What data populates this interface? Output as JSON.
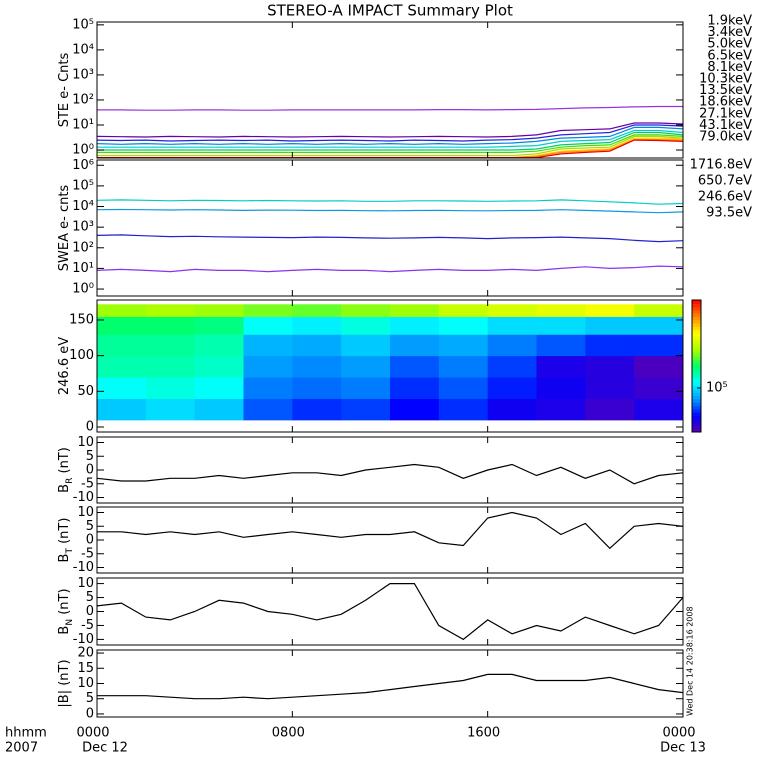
{
  "title": "STEREO-A IMPACT Summary Plot",
  "x_axis": {
    "xlim": [
      0,
      24
    ],
    "xticks": [
      {
        "value": 0,
        "label": "0000"
      },
      {
        "value": 8,
        "label": "0800"
      },
      {
        "value": 16,
        "label": "1600"
      },
      {
        "value": 24,
        "label": "0000"
      }
    ],
    "dates": [
      "Dec 12",
      "Dec 13"
    ],
    "labels": [
      "hhmm",
      "2007"
    ]
  },
  "timestamp": "Wed Dec 14 20:38:16 2008",
  "chart_data": [
    {
      "type": "line",
      "log": true,
      "ylabel": {
        "text": "STE e- Cnts"
      },
      "ylim": [
        0.48,
        130000
      ],
      "yticks": [
        {
          "value": 1,
          "label": "10⁰"
        },
        {
          "value": 10,
          "label": "10¹"
        },
        {
          "value": 100,
          "label": "10²"
        },
        {
          "value": 1000,
          "label": "10³"
        },
        {
          "value": 10000,
          "label": "10⁴"
        },
        {
          "value": 100000,
          "label": "10⁵"
        }
      ],
      "x": [
        0,
        1,
        2,
        3,
        4,
        5,
        6,
        7,
        8,
        9,
        10,
        11,
        12,
        13,
        14,
        15,
        16,
        17,
        18,
        19,
        20,
        21,
        22,
        23,
        24
      ],
      "series": [
        {
          "name": "1.9keV",
          "color": "#9933dd",
          "values": [
            40,
            40,
            39,
            39,
            40,
            40,
            39,
            39,
            40,
            40,
            40,
            40,
            40,
            40,
            41,
            41,
            40,
            41,
            42,
            45,
            48,
            50,
            53,
            55,
            55
          ]
        },
        {
          "name": "3.4keV",
          "color": "#6600aa",
          "values": [
            3.5,
            3.4,
            3.3,
            3.5,
            3.4,
            3.3,
            3.5,
            3.4,
            3.3,
            3.4,
            3.5,
            3.4,
            3.3,
            3.4,
            3.5,
            3.4,
            3.3,
            3.5,
            4,
            6,
            6.5,
            7,
            12,
            12,
            11
          ]
        },
        {
          "name": "5.0keV",
          "color": "#2222dd",
          "values": [
            2.5,
            2.4,
            2.5,
            2.3,
            2.4,
            2.5,
            2.4,
            2.5,
            2.3,
            2.4,
            2.5,
            2.4,
            2.3,
            2.5,
            2.4,
            2.3,
            2.5,
            2.6,
            3,
            4,
            4.5,
            5,
            10,
            10,
            9
          ]
        },
        {
          "name": "6.5keV",
          "color": "#0088dd",
          "values": [
            1.8,
            1.7,
            1.8,
            1.7,
            1.8,
            1.7,
            1.8,
            1.7,
            1.8,
            1.7,
            1.8,
            1.7,
            1.8,
            1.7,
            1.8,
            1.7,
            1.8,
            1.9,
            2.2,
            3,
            3.2,
            3.5,
            8,
            8,
            7
          ]
        },
        {
          "name": "8.1keV",
          "color": "#00cccc",
          "values": [
            1.3,
            1.3,
            1.3,
            1.3,
            1.3,
            1.3,
            1.3,
            1.3,
            1.3,
            1.3,
            1.3,
            1.3,
            1.3,
            1.3,
            1.3,
            1.3,
            1.3,
            1.4,
            1.5,
            2.2,
            2.4,
            2.6,
            6,
            6,
            5
          ]
        },
        {
          "name": "10.3keV",
          "color": "#00cc66",
          "values": [
            1,
            1,
            1,
            1,
            1,
            1,
            1,
            1,
            1,
            1,
            1,
            1,
            1,
            1,
            1,
            1,
            1,
            1,
            1.1,
            1.6,
            1.8,
            2,
            5,
            5,
            4
          ]
        },
        {
          "name": "13.5keV",
          "color": "#44dd00",
          "values": [
            0.8,
            0.8,
            0.8,
            0.8,
            0.8,
            0.8,
            0.8,
            0.8,
            0.8,
            0.8,
            0.8,
            0.8,
            0.8,
            0.8,
            0.8,
            0.8,
            0.8,
            0.8,
            0.9,
            1.3,
            1.5,
            1.6,
            4,
            4,
            3.5
          ]
        },
        {
          "name": "18.6keV",
          "color": "#aadd00",
          "values": [
            0.6,
            0.6,
            0.6,
            0.6,
            0.6,
            0.6,
            0.6,
            0.6,
            0.6,
            0.6,
            0.6,
            0.6,
            0.6,
            0.6,
            0.6,
            0.6,
            0.6,
            0.6,
            0.7,
            1.1,
            1.2,
            1.3,
            3.5,
            3.5,
            3
          ]
        },
        {
          "name": "27.1keV",
          "color": "#ffcc00",
          "values": [
            0.5,
            0.5,
            0.5,
            0.5,
            0.5,
            0.5,
            0.5,
            0.5,
            0.5,
            0.5,
            0.5,
            0.5,
            0.5,
            0.5,
            0.5,
            0.5,
            0.5,
            0.5,
            0.6,
            0.9,
            1,
            1.1,
            3,
            3,
            2.8
          ]
        },
        {
          "name": "43.1keV",
          "color": "#ff8800",
          "values": [
            0.5,
            0.5,
            0.5,
            0.5,
            0.5,
            0.5,
            0.5,
            0.5,
            0.5,
            0.5,
            0.5,
            0.5,
            0.5,
            0.5,
            0.5,
            0.5,
            0.5,
            0.5,
            0.55,
            0.8,
            0.9,
            1,
            2.6,
            2.6,
            2.5
          ]
        },
        {
          "name": "79.0keV",
          "color": "#ee0000",
          "values": [
            0.5,
            0.5,
            0.5,
            0.5,
            0.5,
            0.5,
            0.5,
            0.5,
            0.5,
            0.5,
            0.5,
            0.5,
            0.5,
            0.5,
            0.5,
            0.5,
            0.5,
            0.5,
            0.5,
            0.7,
            0.8,
            0.9,
            2.5,
            2.4,
            2.2
          ]
        }
      ]
    },
    {
      "type": "line",
      "log": true,
      "ylabel": {
        "text": "SWEA e- cnts"
      },
      "ylim": [
        0.46,
        1800000
      ],
      "yticks": [
        {
          "value": 1,
          "label": "10⁰"
        },
        {
          "value": 10,
          "label": "10¹"
        },
        {
          "value": 100,
          "label": "10²"
        },
        {
          "value": 1000,
          "label": "10³"
        },
        {
          "value": 10000,
          "label": "10⁴"
        },
        {
          "value": 100000,
          "label": "10⁵"
        },
        {
          "value": 1000000,
          "label": "10⁶"
        }
      ],
      "x": [
        0,
        1,
        2,
        3,
        4,
        5,
        6,
        7,
        8,
        9,
        10,
        11,
        12,
        13,
        14,
        15,
        16,
        17,
        18,
        19,
        20,
        21,
        22,
        23,
        24
      ],
      "series": [
        {
          "name": "1716.8eV",
          "color": "#8833ee",
          "values": [
            8,
            9,
            8,
            7,
            9,
            8,
            8,
            7,
            8,
            9,
            8,
            8,
            7,
            8,
            9,
            8,
            8,
            9,
            8,
            10,
            12,
            10,
            11,
            13,
            12
          ]
        },
        {
          "name": "650.7eV",
          "color": "#2222cc",
          "values": [
            400,
            420,
            380,
            350,
            360,
            340,
            330,
            320,
            310,
            330,
            320,
            300,
            290,
            300,
            320,
            300,
            280,
            300,
            310,
            330,
            300,
            280,
            230,
            200,
            220
          ]
        },
        {
          "name": "246.6eV",
          "color": "#1199dd",
          "values": [
            7000,
            7200,
            7000,
            6800,
            7000,
            6800,
            6500,
            6700,
            6600,
            6400,
            6500,
            6300,
            6200,
            6400,
            6500,
            6300,
            6200,
            6400,
            6500,
            7000,
            6500,
            6000,
            5500,
            5000,
            5500
          ]
        },
        {
          "name": "93.5eV",
          "color": "#00cccc",
          "values": [
            20000,
            21000,
            20000,
            19000,
            20000,
            19500,
            19000,
            19500,
            19000,
            18500,
            19000,
            18000,
            18000,
            19000,
            19000,
            18500,
            18000,
            18500,
            19000,
            21000,
            19000,
            17000,
            15000,
            13000,
            14000
          ]
        }
      ]
    },
    {
      "type": "heatmap",
      "ylabel": {
        "text": "246.6 eV"
      },
      "ylim": [
        -7,
        178
      ],
      "yticks": [
        0,
        50,
        100,
        150
      ],
      "x_bins": [
        0,
        2,
        4,
        6,
        8,
        10,
        12,
        14,
        16,
        18,
        20,
        22,
        24
      ],
      "y_bins": [
        10,
        40,
        70,
        100,
        130,
        155,
        172
      ],
      "zlim": [
        50000,
        400000
      ],
      "zticks": [
        {
          "value": 100000,
          "label": "10⁵"
        }
      ],
      "colormap": [
        "#5a00b4",
        "#0000ff",
        "#0099ff",
        "#00ffff",
        "#00ff66",
        "#aaff00",
        "#ffff00",
        "#ff8800",
        "#ff0000"
      ],
      "z": [
        [
          95000,
          100000,
          95000,
          75000,
          70000,
          72000,
          65000,
          70000,
          62000,
          60000,
          55000,
          60000
        ],
        [
          110000,
          115000,
          110000,
          80000,
          78000,
          80000,
          70000,
          75000,
          68000,
          62000,
          58000,
          55000
        ],
        [
          125000,
          125000,
          120000,
          85000,
          82000,
          85000,
          75000,
          80000,
          72000,
          60000,
          58000,
          52000
        ],
        [
          130000,
          130000,
          125000,
          90000,
          88000,
          95000,
          85000,
          88000,
          80000,
          75000,
          70000,
          70000
        ],
        [
          140000,
          140000,
          135000,
          110000,
          105000,
          115000,
          105000,
          110000,
          100000,
          100000,
          95000,
          95000
        ],
        [
          180000,
          185000,
          180000,
          170000,
          165000,
          175000,
          180000,
          200000,
          210000,
          220000,
          230000,
          200000
        ]
      ]
    },
    {
      "type": "line",
      "ylabel": {
        "text": "B",
        "sub": "R",
        "unit": " (nT)"
      },
      "ylim": [
        -12,
        12
      ],
      "yticks": [
        -10,
        -5,
        0,
        5,
        10
      ],
      "x": [
        0,
        1,
        2,
        3,
        4,
        5,
        6,
        7,
        8,
        9,
        10,
        11,
        12,
        13,
        14,
        15,
        16,
        17,
        18,
        19,
        20,
        21,
        22,
        23,
        24
      ],
      "series": [
        {
          "color": "#000000",
          "values": [
            -3,
            -4,
            -4,
            -3,
            -3,
            -2,
            -3,
            -2,
            -1,
            -1,
            -2,
            0,
            1,
            2,
            1,
            -3,
            0,
            2,
            -2,
            1,
            -3,
            0,
            -5,
            -2,
            -1
          ]
        }
      ]
    },
    {
      "type": "line",
      "ylabel": {
        "text": "B",
        "sub": "T",
        "unit": " (nT)"
      },
      "ylim": [
        -12,
        12
      ],
      "yticks": [
        -10,
        -5,
        0,
        5,
        10
      ],
      "x": [
        0,
        1,
        2,
        3,
        4,
        5,
        6,
        7,
        8,
        9,
        10,
        11,
        12,
        13,
        14,
        15,
        16,
        17,
        18,
        19,
        20,
        21,
        22,
        23,
        24
      ],
      "series": [
        {
          "color": "#000000",
          "values": [
            3,
            3,
            2,
            3,
            2,
            3,
            1,
            2,
            3,
            2,
            1,
            2,
            2,
            3,
            -1,
            -2,
            8,
            10,
            8,
            2,
            6,
            -3,
            5,
            6,
            5
          ]
        }
      ]
    },
    {
      "type": "line",
      "ylabel": {
        "text": "B",
        "sub": "N",
        "unit": " (nT)"
      },
      "ylim": [
        -12,
        12
      ],
      "yticks": [
        -10,
        -5,
        0,
        5,
        10
      ],
      "x": [
        0,
        1,
        2,
        3,
        4,
        5,
        6,
        7,
        8,
        9,
        10,
        11,
        12,
        13,
        14,
        15,
        16,
        17,
        18,
        19,
        20,
        21,
        22,
        23,
        24
      ],
      "series": [
        {
          "color": "#000000",
          "values": [
            2,
            3,
            -2,
            -3,
            0,
            4,
            3,
            0,
            -1,
            -3,
            -1,
            4,
            10,
            10,
            -5,
            -10,
            -3,
            -8,
            -5,
            -7,
            -2,
            -5,
            -8,
            -5,
            5
          ]
        }
      ]
    },
    {
      "type": "line",
      "ylabel": {
        "text": "|B| (nT)"
      },
      "ylim": [
        -1,
        21
      ],
      "yticks": [
        0,
        5,
        10,
        15,
        20
      ],
      "x": [
        0,
        1,
        2,
        3,
        4,
        5,
        6,
        7,
        8,
        9,
        10,
        11,
        12,
        13,
        14,
        15,
        16,
        17,
        18,
        19,
        20,
        21,
        22,
        23,
        24
      ],
      "series": [
        {
          "color": "#000000",
          "values": [
            6,
            6,
            6,
            5.5,
            5,
            5,
            5.5,
            5,
            5.5,
            6,
            6.5,
            7,
            8,
            9,
            10,
            11,
            13,
            13,
            11,
            11,
            11,
            12,
            10,
            8,
            7
          ]
        }
      ]
    }
  ]
}
